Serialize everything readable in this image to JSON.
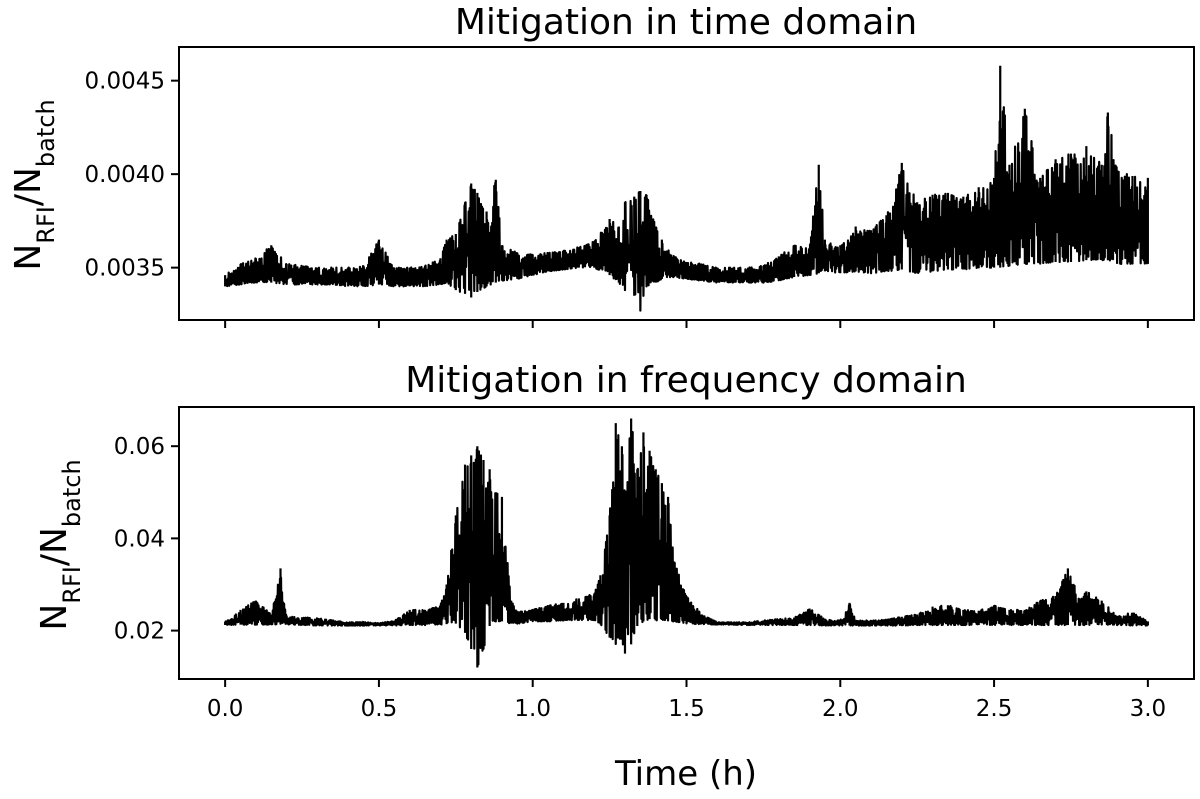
{
  "chart_data": [
    {
      "type": "line",
      "title": "Mitigation in time domain",
      "ylabel": {
        "base1": "N",
        "sub1": "RFI",
        "slash": "/",
        "base2": "N",
        "sub2": "batch"
      },
      "xlabel": "",
      "xlim": [
        -0.15,
        3.15
      ],
      "ylim": [
        0.00322,
        0.00468
      ],
      "xticks": [
        0.0,
        0.5,
        1.0,
        1.5,
        2.0,
        2.5,
        3.0
      ],
      "xtick_labels_shown": false,
      "yticks": [
        0.0035,
        0.004,
        0.0045
      ],
      "ytick_labels": [
        "0.0035",
        "0.0040",
        "0.0045"
      ],
      "grid": false,
      "color": "#000000",
      "series": [
        {
          "name": "",
          "x": [
            0.0,
            0.05,
            0.1,
            0.15,
            0.2,
            0.25,
            0.3,
            0.35,
            0.4,
            0.45,
            0.5,
            0.55,
            0.6,
            0.65,
            0.7,
            0.72,
            0.75,
            0.78,
            0.8,
            0.82,
            0.85,
            0.88,
            0.9,
            0.95,
            1.0,
            1.05,
            1.1,
            1.15,
            1.2,
            1.25,
            1.28,
            1.3,
            1.33,
            1.35,
            1.37,
            1.4,
            1.42,
            1.45,
            1.5,
            1.55,
            1.6,
            1.65,
            1.7,
            1.75,
            1.8,
            1.85,
            1.9,
            1.93,
            1.95,
            2.0,
            2.05,
            2.1,
            2.15,
            2.2,
            2.25,
            2.3,
            2.35,
            2.4,
            2.45,
            2.5,
            2.52,
            2.55,
            2.6,
            2.65,
            2.7,
            2.75,
            2.8,
            2.85,
            2.87,
            2.9,
            2.95,
            3.0
          ],
          "y_low": [
            0.0034,
            0.00341,
            0.00342,
            0.00342,
            0.00341,
            0.00341,
            0.00341,
            0.00341,
            0.0034,
            0.0034,
            0.00341,
            0.0034,
            0.0034,
            0.0034,
            0.00341,
            0.00342,
            0.00338,
            0.00336,
            0.00334,
            0.00337,
            0.0034,
            0.00342,
            0.00343,
            0.00344,
            0.00346,
            0.00348,
            0.00349,
            0.0035,
            0.0035,
            0.00346,
            0.00342,
            0.00338,
            0.00335,
            0.00327,
            0.0034,
            0.00342,
            0.00344,
            0.00345,
            0.00344,
            0.00343,
            0.00342,
            0.00342,
            0.00342,
            0.00342,
            0.00343,
            0.00345,
            0.00346,
            0.00347,
            0.00348,
            0.00347,
            0.00348,
            0.00347,
            0.00348,
            0.00349,
            0.00347,
            0.00348,
            0.00349,
            0.00349,
            0.0035,
            0.0035,
            0.0035,
            0.00351,
            0.00352,
            0.00352,
            0.00353,
            0.00353,
            0.00354,
            0.00354,
            0.00354,
            0.00352,
            0.00352,
            0.00352
          ],
          "y_high": [
            0.00346,
            0.00352,
            0.00355,
            0.00362,
            0.00352,
            0.00351,
            0.0035,
            0.0035,
            0.0035,
            0.00351,
            0.00365,
            0.0035,
            0.0035,
            0.00351,
            0.00355,
            0.00365,
            0.00368,
            0.00385,
            0.00395,
            0.0039,
            0.0038,
            0.00397,
            0.00362,
            0.00358,
            0.00357,
            0.00358,
            0.00359,
            0.00361,
            0.00364,
            0.00376,
            0.00372,
            0.00385,
            0.00388,
            0.00391,
            0.00389,
            0.00372,
            0.00365,
            0.00357,
            0.00353,
            0.00352,
            0.0035,
            0.0035,
            0.0035,
            0.00351,
            0.00356,
            0.00362,
            0.0036,
            0.00405,
            0.00365,
            0.00362,
            0.00372,
            0.0037,
            0.00378,
            0.00406,
            0.00385,
            0.00389,
            0.0039,
            0.00388,
            0.00393,
            0.00398,
            0.00458,
            0.00405,
            0.00435,
            0.00398,
            0.00408,
            0.00411,
            0.00415,
            0.00405,
            0.00433,
            0.00402,
            0.00399,
            0.00398
          ]
        }
      ]
    },
    {
      "type": "line",
      "title": "Mitigation in frequency domain",
      "ylabel": {
        "base1": "N",
        "sub1": "RFI",
        "slash": "/",
        "base2": "N",
        "sub2": "batch"
      },
      "xlabel": "Time (h)",
      "xlim": [
        -0.15,
        3.15
      ],
      "ylim": [
        0.0095,
        0.0685
      ],
      "xticks": [
        0.0,
        0.5,
        1.0,
        1.5,
        2.0,
        2.5,
        3.0
      ],
      "xtick_labels": [
        "0.0",
        "0.5",
        "1.0",
        "1.5",
        "2.0",
        "2.5",
        "3.0"
      ],
      "yticks": [
        0.02,
        0.04,
        0.06
      ],
      "ytick_labels": [
        "0.02",
        "0.04",
        "0.06"
      ],
      "grid": false,
      "color": "#000000",
      "series": [
        {
          "name": "",
          "x": [
            0.0,
            0.05,
            0.1,
            0.15,
            0.18,
            0.2,
            0.25,
            0.3,
            0.35,
            0.4,
            0.45,
            0.5,
            0.55,
            0.6,
            0.65,
            0.7,
            0.72,
            0.75,
            0.78,
            0.8,
            0.82,
            0.84,
            0.86,
            0.88,
            0.9,
            0.93,
            0.95,
            1.0,
            1.05,
            1.1,
            1.15,
            1.2,
            1.22,
            1.25,
            1.27,
            1.29,
            1.3,
            1.32,
            1.34,
            1.36,
            1.38,
            1.4,
            1.42,
            1.44,
            1.46,
            1.5,
            1.55,
            1.6,
            1.65,
            1.7,
            1.75,
            1.8,
            1.85,
            1.9,
            1.95,
            2.0,
            2.03,
            2.05,
            2.1,
            2.15,
            2.2,
            2.25,
            2.3,
            2.35,
            2.4,
            2.45,
            2.5,
            2.55,
            2.6,
            2.65,
            2.7,
            2.74,
            2.78,
            2.8,
            2.85,
            2.9,
            2.95,
            3.0
          ],
          "y_low": [
            0.0212,
            0.0213,
            0.0213,
            0.0213,
            0.0214,
            0.0213,
            0.0212,
            0.0211,
            0.0211,
            0.0211,
            0.0211,
            0.0211,
            0.0211,
            0.0212,
            0.0212,
            0.0213,
            0.0214,
            0.0215,
            0.0195,
            0.016,
            0.012,
            0.016,
            0.021,
            0.022,
            0.022,
            0.0215,
            0.0215,
            0.022,
            0.022,
            0.0222,
            0.0223,
            0.0222,
            0.0215,
            0.0185,
            0.017,
            0.018,
            0.015,
            0.017,
            0.021,
            0.022,
            0.0225,
            0.0222,
            0.0223,
            0.0222,
            0.0219,
            0.0215,
            0.0214,
            0.0213,
            0.0213,
            0.0212,
            0.0212,
            0.0212,
            0.0212,
            0.0212,
            0.0211,
            0.0211,
            0.0211,
            0.0211,
            0.0211,
            0.0211,
            0.0211,
            0.0212,
            0.0212,
            0.0212,
            0.0212,
            0.0212,
            0.0212,
            0.0212,
            0.0212,
            0.0212,
            0.0212,
            0.0212,
            0.0212,
            0.0212,
            0.0212,
            0.0212,
            0.0211,
            0.0211
          ],
          "y_high": [
            0.0219,
            0.0245,
            0.0265,
            0.0235,
            0.0335,
            0.0232,
            0.0229,
            0.0227,
            0.0222,
            0.0218,
            0.0219,
            0.0216,
            0.0221,
            0.0245,
            0.0245,
            0.0255,
            0.03,
            0.045,
            0.056,
            0.058,
            0.06,
            0.057,
            0.055,
            0.05,
            0.049,
            0.0265,
            0.024,
            0.0245,
            0.0255,
            0.026,
            0.027,
            0.028,
            0.032,
            0.045,
            0.065,
            0.06,
            0.049,
            0.066,
            0.055,
            0.063,
            0.059,
            0.055,
            0.052,
            0.049,
            0.035,
            0.0275,
            0.0235,
            0.0218,
            0.0218,
            0.0218,
            0.0222,
            0.0225,
            0.0228,
            0.0248,
            0.0225,
            0.0222,
            0.026,
            0.0222,
            0.0222,
            0.0224,
            0.023,
            0.0235,
            0.0252,
            0.0255,
            0.0245,
            0.0243,
            0.0255,
            0.0245,
            0.0245,
            0.0265,
            0.0275,
            0.0335,
            0.0265,
            0.0285,
            0.0265,
            0.0232,
            0.0239,
            0.022
          ]
        }
      ]
    }
  ]
}
